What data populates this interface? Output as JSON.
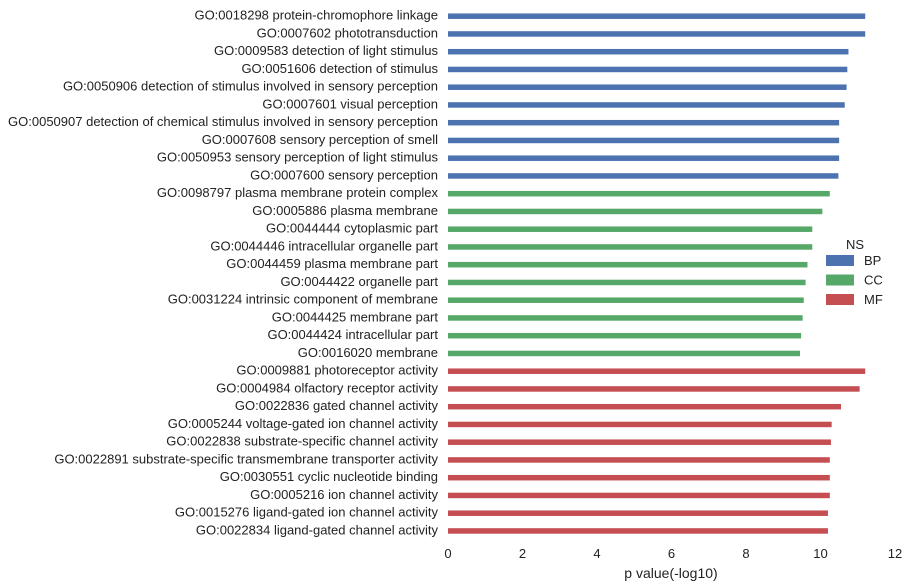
{
  "chart_data": {
    "type": "bar",
    "orientation": "horizontal",
    "xlabel": "p value(-log10)",
    "xlim": [
      0,
      12
    ],
    "xticks": [
      0,
      2,
      4,
      6,
      8,
      10,
      12
    ],
    "grid": false,
    "legend": {
      "title": "NS",
      "placement": "right",
      "items": [
        {
          "name": "BP",
          "color": "#4c72b0"
        },
        {
          "name": "CC",
          "color": "#55a868"
        },
        {
          "name": "MF",
          "color": "#c44e52"
        }
      ]
    },
    "bars": [
      {
        "label": "GO:0018298 protein-chromophore linkage",
        "group": "BP",
        "value": 11.2
      },
      {
        "label": "GO:0007602 phototransduction",
        "group": "BP",
        "value": 11.2
      },
      {
        "label": "GO:0009583 detection of light stimulus",
        "group": "BP",
        "value": 10.75
      },
      {
        "label": "GO:0051606 detection of stimulus",
        "group": "BP",
        "value": 10.72
      },
      {
        "label": "GO:0050906 detection of stimulus involved in sensory perception",
        "group": "BP",
        "value": 10.7
      },
      {
        "label": "GO:0007601 visual perception",
        "group": "BP",
        "value": 10.65
      },
      {
        "label": "GO:0050907 detection of chemical stimulus involved in sensory perception",
        "group": "BP",
        "value": 10.5
      },
      {
        "label": "GO:0007608 sensory perception of smell",
        "group": "BP",
        "value": 10.5
      },
      {
        "label": "GO:0050953 sensory perception of light stimulus",
        "group": "BP",
        "value": 10.5
      },
      {
        "label": "GO:0007600 sensory perception",
        "group": "BP",
        "value": 10.48
      },
      {
        "label": "GO:0098797 plasma membrane protein complex",
        "group": "CC",
        "value": 10.25
      },
      {
        "label": "GO:0005886 plasma membrane",
        "group": "CC",
        "value": 10.05
      },
      {
        "label": "GO:0044444 cytoplasmic part",
        "group": "CC",
        "value": 9.78
      },
      {
        "label": "GO:0044446 intracellular organelle part",
        "group": "CC",
        "value": 9.78
      },
      {
        "label": "GO:0044459 plasma membrane part",
        "group": "CC",
        "value": 9.65
      },
      {
        "label": "GO:0044422 organelle part",
        "group": "CC",
        "value": 9.6
      },
      {
        "label": "GO:0031224 intrinsic component of membrane",
        "group": "CC",
        "value": 9.55
      },
      {
        "label": "GO:0044425 membrane part",
        "group": "CC",
        "value": 9.52
      },
      {
        "label": "GO:0044424 intracellular part",
        "group": "CC",
        "value": 9.48
      },
      {
        "label": "GO:0016020 membrane",
        "group": "CC",
        "value": 9.45
      },
      {
        "label": "GO:0009881 photoreceptor activity",
        "group": "MF",
        "value": 11.2
      },
      {
        "label": "GO:0004984 olfactory receptor activity",
        "group": "MF",
        "value": 11.05
      },
      {
        "label": "GO:0022836 gated channel activity",
        "group": "MF",
        "value": 10.55
      },
      {
        "label": "GO:0005244 voltage-gated ion channel activity",
        "group": "MF",
        "value": 10.3
      },
      {
        "label": "GO:0022838 substrate-specific channel activity",
        "group": "MF",
        "value": 10.28
      },
      {
        "label": "GO:0022891 substrate-specific transmembrane transporter activity",
        "group": "MF",
        "value": 10.25
      },
      {
        "label": "GO:0030551 cyclic nucleotide binding",
        "group": "MF",
        "value": 10.25
      },
      {
        "label": "GO:0005216 ion channel activity",
        "group": "MF",
        "value": 10.25
      },
      {
        "label": "GO:0015276 ligand-gated ion channel activity",
        "group": "MF",
        "value": 10.2
      },
      {
        "label": "GO:0022834 ligand-gated channel activity",
        "group": "MF",
        "value": 10.2
      }
    ]
  }
}
